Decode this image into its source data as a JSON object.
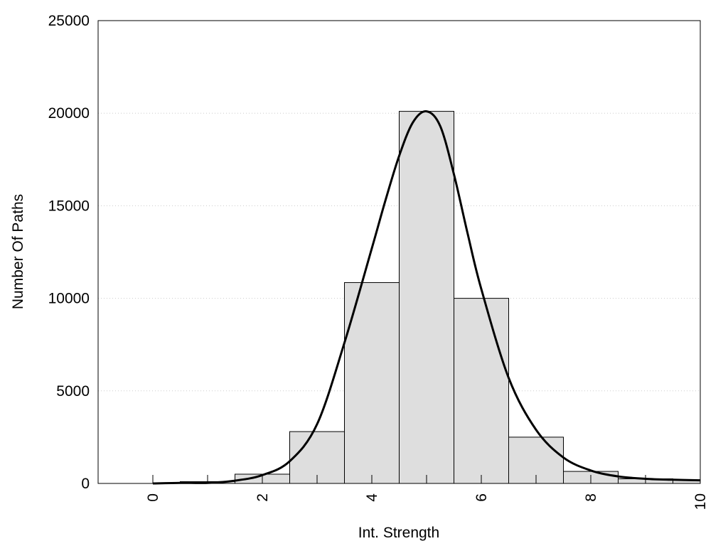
{
  "chart_data": {
    "type": "bar",
    "xlabel": "Int. Strength",
    "ylabel": "Number Of Paths",
    "xlim": [
      -1,
      10
    ],
    "ylim": [
      0,
      25000
    ],
    "x_ticks": [
      "0",
      "2",
      "4",
      "6",
      "8",
      "10"
    ],
    "y_ticks": [
      "0",
      "5000",
      "10000",
      "15000",
      "20000",
      "25000"
    ],
    "grid": "horizontal dotted",
    "legend": "none",
    "histogram": {
      "bin_width": 1,
      "centers": [
        0,
        1,
        2,
        3,
        4,
        5,
        6,
        7,
        8,
        9,
        10
      ],
      "values": [
        0,
        100,
        500,
        2800,
        10850,
        20100,
        10000,
        2500,
        650,
        250,
        170
      ]
    },
    "fit_curve": {
      "x": [
        0,
        0.5,
        1,
        1.5,
        2,
        2.5,
        3,
        3.5,
        4,
        4.25,
        4.5,
        4.75,
        5,
        5.25,
        5.5,
        5.75,
        6,
        6.5,
        7,
        7.5,
        8,
        8.5,
        9,
        9.5,
        10
      ],
      "y": [
        0,
        30,
        30,
        150,
        450,
        1200,
        3200,
        7600,
        12700,
        15300,
        17700,
        19500,
        20100,
        19300,
        16700,
        13500,
        10500,
        5700,
        2900,
        1400,
        700,
        380,
        250,
        200,
        170
      ]
    },
    "colors": {
      "bar_fill": "#dedede",
      "bar_stroke": "#000000",
      "curve": "#000000",
      "grid": "#cccccc"
    }
  }
}
